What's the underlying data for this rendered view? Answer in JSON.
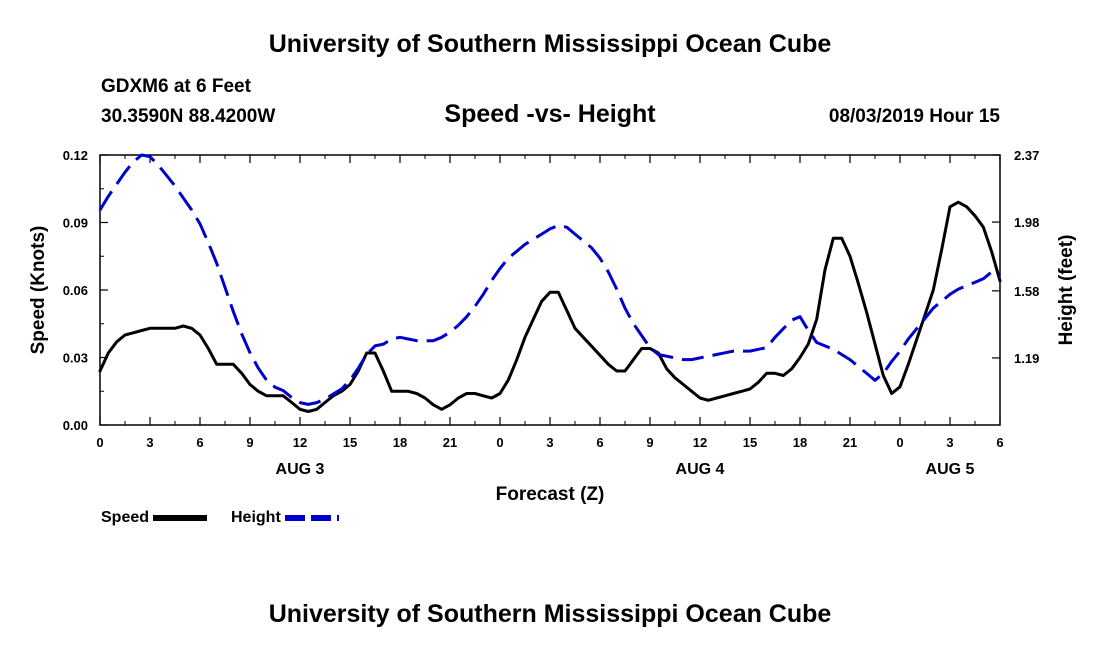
{
  "page": {
    "title_top": "University of Southern Mississippi Ocean Cube",
    "title_bottom": "University of Southern Mississippi Ocean Cube",
    "station": "GDXM6 at 6 Feet",
    "location": "30.3590N 88.4200W",
    "plot_title": "Speed -vs- Height",
    "issued": "08/03/2019 Hour 15"
  },
  "colors": {
    "speed": "#000000",
    "height": "#0000cc",
    "axis": "#000000"
  },
  "chart_data": {
    "type": "line",
    "title": "Speed -vs- Height",
    "xlabel": "Forecast (Z)",
    "ylabel": "Speed (Knots)",
    "y2label": "Height (feet)",
    "x_range_hours": [
      0,
      54
    ],
    "ylim": [
      0,
      0.12
    ],
    "y2lim": [
      0.8,
      2.37
    ],
    "grid": false,
    "legend": "bottom-left",
    "x_ticks": [
      {
        "hour": 0,
        "label": "0"
      },
      {
        "hour": 3,
        "label": "3"
      },
      {
        "hour": 6,
        "label": "6"
      },
      {
        "hour": 9,
        "label": "9"
      },
      {
        "hour": 12,
        "label": "12"
      },
      {
        "hour": 15,
        "label": "15"
      },
      {
        "hour": 18,
        "label": "18"
      },
      {
        "hour": 21,
        "label": "21"
      },
      {
        "hour": 24,
        "label": "0"
      },
      {
        "hour": 27,
        "label": "3"
      },
      {
        "hour": 30,
        "label": "6"
      },
      {
        "hour": 33,
        "label": "9"
      },
      {
        "hour": 36,
        "label": "12"
      },
      {
        "hour": 39,
        "label": "15"
      },
      {
        "hour": 42,
        "label": "18"
      },
      {
        "hour": 45,
        "label": "21"
      },
      {
        "hour": 48,
        "label": "0"
      },
      {
        "hour": 51,
        "label": "3"
      },
      {
        "hour": 54,
        "label": "6"
      }
    ],
    "date_labels": [
      {
        "hour": 12,
        "label": "AUG 3"
      },
      {
        "hour": 36,
        "label": "AUG 4"
      },
      {
        "hour": 51,
        "label": "AUG 5"
      }
    ],
    "y_ticks": [
      {
        "value": 0,
        "label": "0.00"
      },
      {
        "value": 0.03,
        "label": "0.03"
      },
      {
        "value": 0.06,
        "label": "0.06"
      },
      {
        "value": 0.09,
        "label": "0.09"
      },
      {
        "value": 0.12,
        "label": "0.12"
      }
    ],
    "y2_ticks": [
      {
        "value": 1.19,
        "label": "1.19"
      },
      {
        "value": 1.58,
        "label": "1.58"
      },
      {
        "value": 1.98,
        "label": "1.98"
      },
      {
        "value": 2.37,
        "label": "2.37"
      }
    ],
    "series": [
      {
        "name": "Speed",
        "axis": "left",
        "style": "solid",
        "x": [
          0,
          0.5,
          1,
          1.5,
          2,
          2.5,
          3,
          3.5,
          4,
          4.5,
          5,
          5.5,
          6,
          6.5,
          7,
          7.5,
          8,
          8.5,
          9,
          9.5,
          10,
          10.5,
          11,
          11.5,
          12,
          12.5,
          13,
          13.5,
          14,
          14.5,
          15,
          15.5,
          16,
          16.5,
          17,
          17.5,
          18,
          18.5,
          19,
          19.5,
          20,
          20.5,
          21,
          21.5,
          22,
          22.5,
          23,
          23.5,
          24,
          24.5,
          25,
          25.5,
          26,
          26.5,
          27,
          27.5,
          28,
          28.5,
          29,
          29.5,
          30,
          30.5,
          31,
          31.5,
          32,
          32.5,
          33,
          33.5,
          34,
          34.5,
          35,
          35.5,
          36,
          36.5,
          37,
          37.5,
          38,
          38.5,
          39,
          39.5,
          40,
          40.5,
          41,
          41.5,
          42,
          42.5,
          43,
          43.5,
          44,
          44.5,
          45,
          45.5,
          46,
          46.5,
          47,
          47.5,
          48,
          48.5,
          49,
          49.5,
          50,
          50.5,
          51,
          51.5,
          52,
          52.5,
          53,
          53.5,
          54
        ],
        "values": [
          0.024,
          0.032,
          0.037,
          0.04,
          0.041,
          0.042,
          0.043,
          0.043,
          0.043,
          0.043,
          0.044,
          0.043,
          0.04,
          0.034,
          0.027,
          0.027,
          0.027,
          0.023,
          0.018,
          0.015,
          0.013,
          0.013,
          0.013,
          0.01,
          0.007,
          0.006,
          0.007,
          0.01,
          0.013,
          0.015,
          0.018,
          0.024,
          0.032,
          0.032,
          0.024,
          0.015,
          0.015,
          0.015,
          0.014,
          0.012,
          0.009,
          0.007,
          0.009,
          0.012,
          0.014,
          0.014,
          0.013,
          0.012,
          0.014,
          0.02,
          0.029,
          0.039,
          0.047,
          0.055,
          0.059,
          0.059,
          0.051,
          0.043,
          0.039,
          0.035,
          0.031,
          0.027,
          0.024,
          0.024,
          0.029,
          0.034,
          0.034,
          0.032,
          0.025,
          0.021,
          0.018,
          0.015,
          0.012,
          0.011,
          0.012,
          0.013,
          0.014,
          0.015,
          0.016,
          0.019,
          0.023,
          0.023,
          0.022,
          0.025,
          0.03,
          0.036,
          0.047,
          0.069,
          0.083,
          0.083,
          0.075,
          0.063,
          0.05,
          0.036,
          0.022,
          0.014,
          0.017,
          0.027,
          0.038,
          0.049,
          0.06,
          0.078,
          0.097,
          0.099,
          0.097,
          0.093,
          0.088,
          0.077,
          0.064
        ]
      },
      {
        "name": "Height",
        "axis": "right",
        "style": "dashed",
        "x": [
          0,
          0.5,
          1,
          1.5,
          2,
          2.5,
          3,
          3.5,
          4,
          4.5,
          5,
          5.5,
          6,
          6.5,
          7,
          7.5,
          8,
          8.5,
          9,
          9.5,
          10,
          10.5,
          11,
          11.5,
          12,
          12.5,
          13,
          13.5,
          14,
          14.5,
          15,
          15.5,
          16,
          16.5,
          17,
          17.5,
          18,
          18.5,
          19,
          19.5,
          20,
          20.5,
          21,
          21.5,
          22,
          22.5,
          23,
          23.5,
          24,
          24.5,
          25,
          25.5,
          26,
          26.5,
          27,
          27.5,
          28,
          28.5,
          29,
          29.5,
          30,
          30.5,
          31,
          31.5,
          32,
          32.5,
          33,
          33.5,
          34,
          34.5,
          35,
          35.5,
          36,
          36.5,
          37,
          37.5,
          38,
          38.5,
          39,
          39.5,
          40,
          40.5,
          41,
          41.5,
          42,
          42.5,
          43,
          43.5,
          44,
          44.5,
          45,
          45.5,
          46,
          46.5,
          47,
          47.5,
          48,
          48.5,
          49,
          49.5,
          50,
          50.5,
          51,
          51.5,
          52,
          52.5,
          53,
          53.5,
          54
        ],
        "values": [
          2.05,
          2.13,
          2.2,
          2.27,
          2.33,
          2.37,
          2.36,
          2.31,
          2.25,
          2.19,
          2.12,
          2.05,
          1.97,
          1.86,
          1.74,
          1.6,
          1.46,
          1.33,
          1.22,
          1.13,
          1.06,
          1.02,
          1.0,
          0.96,
          0.93,
          0.92,
          0.93,
          0.95,
          0.98,
          1.01,
          1.06,
          1.13,
          1.21,
          1.26,
          1.27,
          1.3,
          1.31,
          1.3,
          1.29,
          1.29,
          1.29,
          1.31,
          1.34,
          1.38,
          1.43,
          1.49,
          1.56,
          1.64,
          1.71,
          1.77,
          1.81,
          1.85,
          1.88,
          1.91,
          1.94,
          1.96,
          1.95,
          1.91,
          1.87,
          1.83,
          1.77,
          1.69,
          1.59,
          1.48,
          1.39,
          1.32,
          1.25,
          1.21,
          1.2,
          1.19,
          1.18,
          1.18,
          1.19,
          1.2,
          1.21,
          1.22,
          1.23,
          1.23,
          1.23,
          1.24,
          1.25,
          1.31,
          1.36,
          1.41,
          1.43,
          1.35,
          1.28,
          1.26,
          1.24,
          1.21,
          1.18,
          1.14,
          1.1,
          1.06,
          1.1,
          1.17,
          1.23,
          1.3,
          1.36,
          1.42,
          1.48,
          1.52,
          1.56,
          1.59,
          1.61,
          1.63,
          1.65,
          1.69,
          1.66
        ]
      }
    ]
  }
}
